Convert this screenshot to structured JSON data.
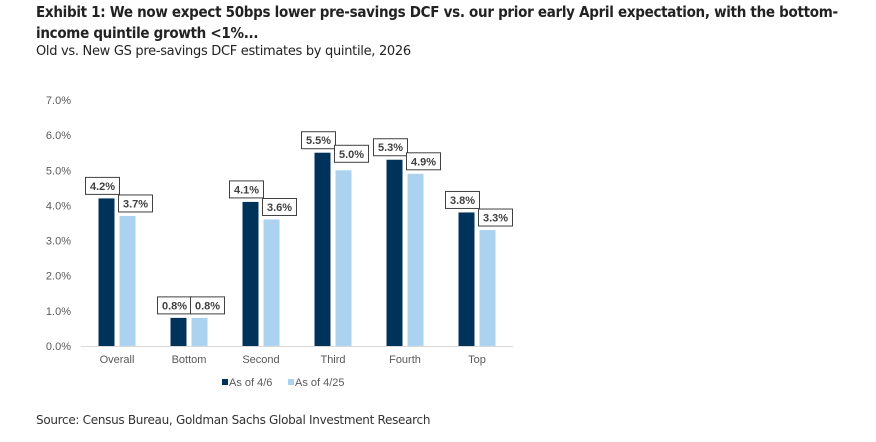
{
  "header": {
    "title": "Exhibit 1: We now expect 50bps lower pre-savings DCF vs. our prior early April expectation, with the bottom-income quintile growth <1%...",
    "subtitle": "Old vs. New GS pre-savings DCF estimates by quintile, 2026"
  },
  "footer": {
    "source": "Source: Census Bureau, Goldman Sachs Global Investment Research"
  },
  "chart_data": {
    "type": "bar",
    "categories": [
      "Overall",
      "Bottom",
      "Second",
      "Third",
      "Fourth",
      "Top"
    ],
    "series": [
      {
        "name": "As of 4/6",
        "values": [
          4.2,
          0.8,
          4.1,
          5.5,
          5.3,
          3.8
        ],
        "color": "#003359"
      },
      {
        "name": "As of 4/25",
        "values": [
          3.7,
          0.8,
          3.6,
          5.0,
          4.9,
          3.3
        ],
        "color": "#abd3ef"
      }
    ],
    "title": "",
    "xlabel": "",
    "ylabel": "",
    "ylim": [
      0,
      7
    ],
    "yticks": [
      "0.0%",
      "1.0%",
      "2.0%",
      "3.0%",
      "4.0%",
      "5.0%",
      "6.0%",
      "7.0%"
    ],
    "value_format": "percent, 1 decimal",
    "data_labels": true,
    "grid": false,
    "legend": "bottom"
  }
}
